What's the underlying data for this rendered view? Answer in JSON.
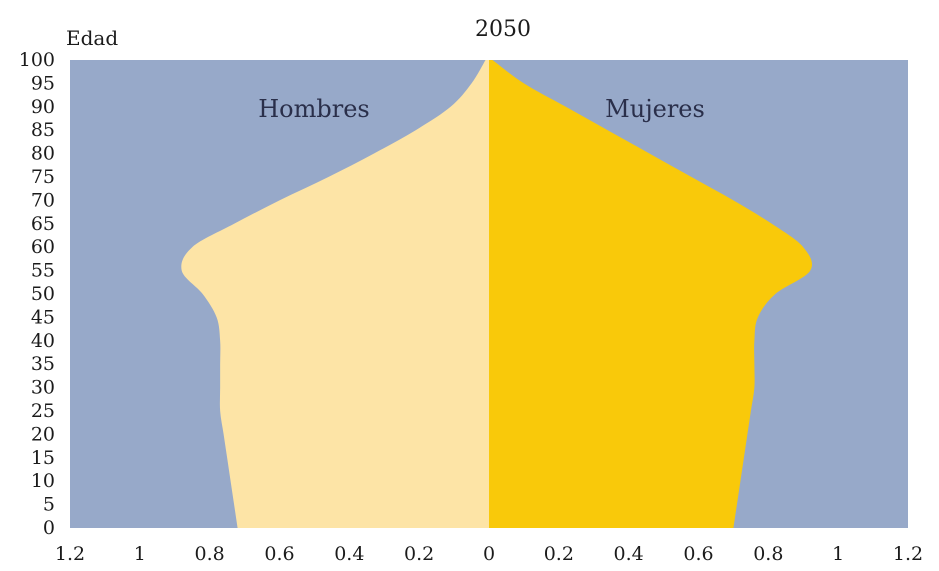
{
  "chart_data": {
    "type": "area",
    "title": "2050",
    "ylabel": "Edad",
    "xlabel": "",
    "xlim": [
      -1.2,
      1.2
    ],
    "ylim": [
      0,
      100
    ],
    "yticks": [
      "0",
      "5",
      "10",
      "15",
      "20",
      "25",
      "30",
      "35",
      "40",
      "45",
      "50",
      "55",
      "60",
      "65",
      "70",
      "75",
      "80",
      "85",
      "90",
      "95",
      "100"
    ],
    "xtick_labels": [
      "1.2",
      "1",
      "0.8",
      "0.6",
      "0.4",
      "0.2",
      "0",
      "0.2",
      "0.4",
      "0.6",
      "0.8",
      "1",
      "1.2"
    ],
    "grid": false,
    "colors": {
      "plot_bg": "#97a9c9",
      "hombres": "#fde4a6",
      "mujeres": "#f9c90a"
    },
    "ages": [
      0,
      5,
      10,
      15,
      20,
      25,
      30,
      35,
      40,
      45,
      50,
      55,
      60,
      65,
      70,
      75,
      80,
      85,
      90,
      95,
      100
    ],
    "series": [
      {
        "name": "Hombres",
        "values": [
          0.72,
          0.73,
          0.74,
          0.75,
          0.76,
          0.77,
          0.77,
          0.77,
          0.77,
          0.78,
          0.82,
          0.88,
          0.85,
          0.73,
          0.6,
          0.46,
          0.33,
          0.21,
          0.11,
          0.05,
          0.01
        ]
      },
      {
        "name": "Mujeres",
        "values": [
          0.7,
          0.71,
          0.72,
          0.73,
          0.74,
          0.75,
          0.76,
          0.76,
          0.76,
          0.77,
          0.82,
          0.92,
          0.9,
          0.81,
          0.7,
          0.58,
          0.46,
          0.34,
          0.22,
          0.1,
          0.01
        ]
      }
    ]
  }
}
